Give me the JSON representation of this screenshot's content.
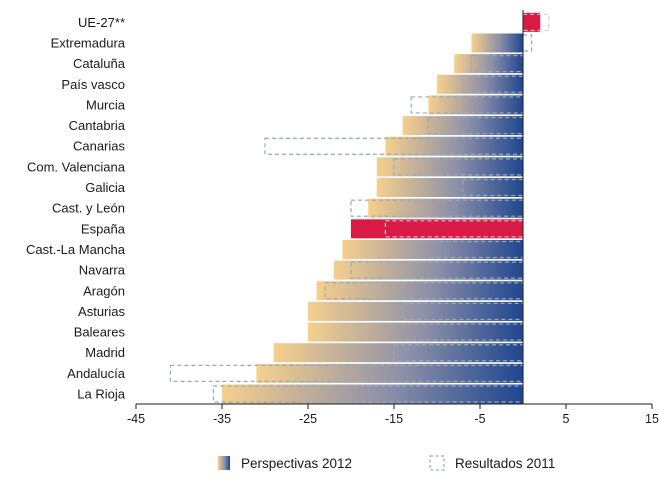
{
  "chart_data": {
    "type": "bar",
    "orientation": "horizontal",
    "categories": [
      "UE-27**",
      "Extremadura",
      "Cataluña",
      "País vasco",
      "Murcia",
      "Cantabria",
      "Canarias",
      "Com. Valenciana",
      "Galicia",
      "Cast. y León",
      "España",
      "Cast.-La Mancha",
      "Navarra",
      "Aragón",
      "Asturias",
      "Baleares",
      "Madrid",
      "Andalucía",
      "La Rioja"
    ],
    "series": [
      {
        "name": "Perspectivas 2012",
        "values": [
          2,
          -6,
          -8,
          -10,
          -11,
          -14,
          -16,
          -17,
          -17,
          -18,
          -20,
          -21,
          -22,
          -24,
          -25,
          -25,
          -29,
          -31,
          -35
        ]
      },
      {
        "name": "Resultados 2011",
        "values": [
          3,
          1,
          -6,
          -7,
          -13,
          -11,
          -30,
          -15,
          -7,
          -20,
          -16,
          -13,
          -20,
          -23,
          -14,
          -15,
          -15,
          -41,
          -36
        ]
      }
    ],
    "highlight_categories": [
      "UE-27**",
      "España"
    ],
    "xlim": [
      -45,
      15
    ],
    "xticks": [
      "-45",
      "-35",
      "-25",
      "-15",
      "-5",
      "5",
      "15"
    ],
    "grid": false,
    "legend_position": "bottom-center",
    "colors": {
      "gradient_left": "#f6cf8c",
      "gradient_right": "#1f4690",
      "highlight": "#d91a44",
      "outline": "#9aa9b8"
    }
  }
}
